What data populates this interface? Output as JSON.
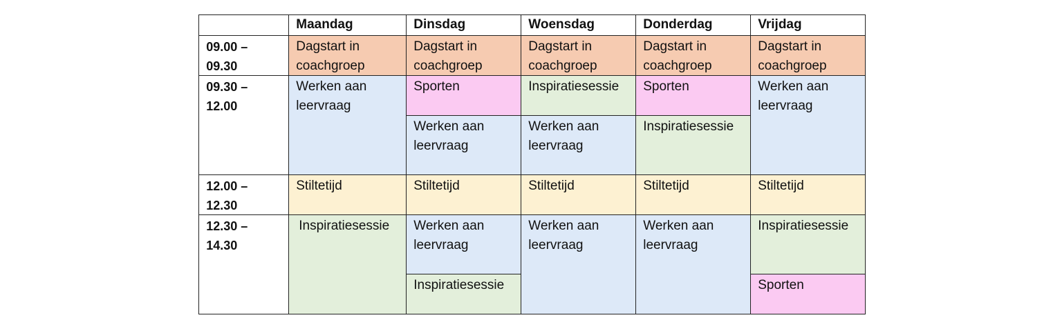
{
  "header": {
    "corner": "",
    "days": [
      "Maandag",
      "Dinsdag",
      "Woensdag",
      "Donderdag",
      "Vrijdag"
    ]
  },
  "times": [
    "09.00 –\n09.30",
    "09.30 –\n12.00",
    "12.00 –\n12.30",
    "12.30 –\n14.30"
  ],
  "activities": {
    "dagstart": "Dagstart in\ncoachgroep",
    "werken": "Werken aan\nleervraag",
    "sporten": "Sporten",
    "inspiratie": "Inspiratiesessie",
    "stilte": "Stiltetijd"
  },
  "colors": {
    "dagstart": "#f6cbb1",
    "werken": "#dde9f8",
    "sporten": "#fbcaf2",
    "inspiratie": "#e3efdb",
    "stilte": "#fdf1d2"
  },
  "schedule": {
    "maandag": [
      "Dagstart in\ncoachgroep",
      "Werken aan\nleervraag",
      "Stiltetijd",
      "Inspiratiesessie"
    ],
    "dinsdag": [
      "Dagstart in\ncoachgroep",
      "Sporten",
      "Werken aan\nleervraag",
      "Stiltetijd",
      "Werken aan\nleervraag",
      "Inspiratiesessie"
    ],
    "woensdag": [
      "Dagstart in\ncoachgroep",
      "Inspiratiesessie",
      "Werken aan\nleervraag",
      "Stiltetijd",
      "Werken aan\nleervraag"
    ],
    "donderdag": [
      "Dagstart in\ncoachgroep",
      "Sporten",
      "Inspiratiesessie",
      "Stiltetijd",
      "Werken aan\nleervraag"
    ],
    "vrijdag": [
      "Dagstart in\ncoachgroep",
      "Werken aan\nleervraag",
      "Stiltetijd",
      "Inspiratiesessie",
      "Sporten"
    ]
  }
}
